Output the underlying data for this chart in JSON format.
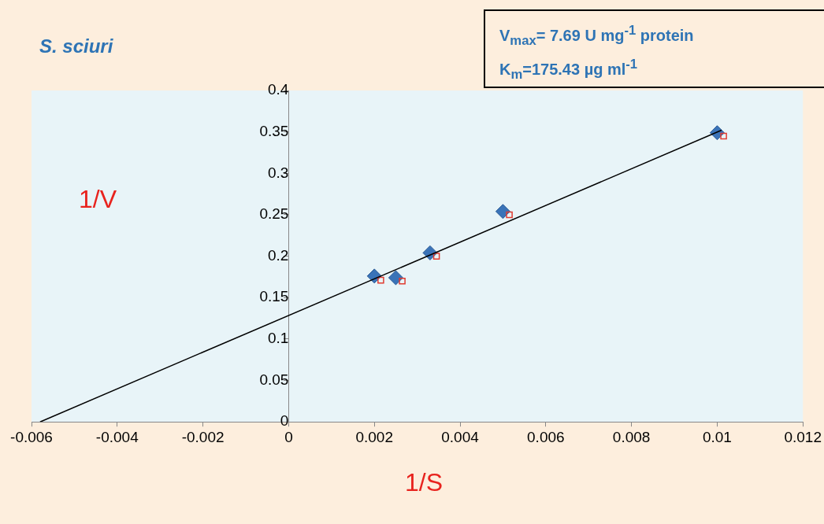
{
  "chart_data": {
    "type": "scatter",
    "title": "S. sciuri",
    "xlabel": "1/S",
    "ylabel": "1/V",
    "annotations": [
      "V$_{max}$= 7.69 U mg$^{-1}$ protein",
      "K$_{m}$=175.43 µg ml$^{-1}$"
    ],
    "xlim": [
      -0.006,
      0.012
    ],
    "xticks": [
      -0.006,
      -0.004,
      -0.002,
      0,
      0.002,
      0.004,
      0.006,
      0.008,
      0.01,
      0.012
    ],
    "ylim": [
      0,
      0.4
    ],
    "yticks": [
      0,
      0.05,
      0.1,
      0.15,
      0.2,
      0.25,
      0.3,
      0.35,
      0.4
    ],
    "grid": false,
    "legend": false,
    "series": [
      {
        "type": "scatter",
        "color": "#e03c31",
        "marker": "square",
        "x": [
          0.00215,
          0.00265,
          0.00345,
          0.00515,
          0.01015
        ],
        "values": [
          0.171,
          0.17,
          0.2,
          0.25,
          0.345
        ]
      },
      {
        "type": "scatter",
        "color": "#3a73b8",
        "marker": "diamond",
        "x": [
          0.002,
          0.0025,
          0.0033,
          0.005,
          0.01
        ],
        "values": [
          0.176,
          0.174,
          0.204,
          0.254,
          0.349
        ]
      },
      {
        "type": "line",
        "color": "#000000",
        "marker": "none",
        "line_style": "solid",
        "x": [
          -0.0058,
          0.0101
        ],
        "values": [
          0,
          0.352
        ]
      }
    ]
  }
}
